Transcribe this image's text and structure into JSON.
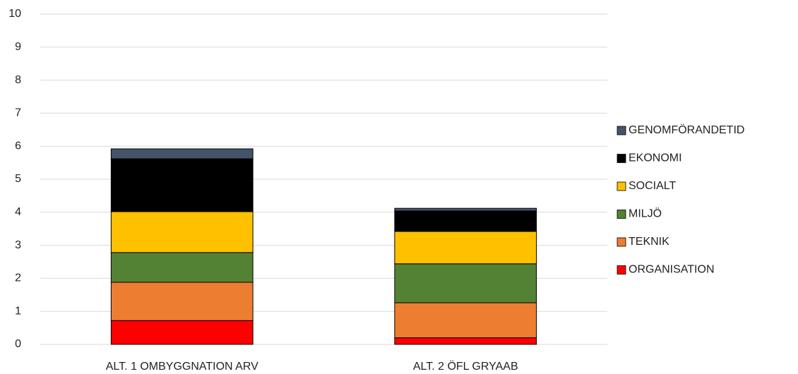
{
  "chart_data": {
    "type": "stacked_bar",
    "categories": [
      "ALT. 1 OMBYGGNATION ARV",
      "ALT. 2 ÖFL GRYAAB"
    ],
    "series": [
      {
        "name": "ORGANISATION",
        "color": "#ff0000",
        "values": [
          0.72,
          0.2
        ]
      },
      {
        "name": "TEKNIK",
        "color": "#ed7d31",
        "values": [
          1.16,
          1.06
        ]
      },
      {
        "name": "MILJÖ",
        "color": "#548235",
        "values": [
          0.9,
          1.18
        ]
      },
      {
        "name": "SOCIALT",
        "color": "#ffc000",
        "values": [
          1.24,
          0.98
        ]
      },
      {
        "name": "EKONOMI",
        "color": "#000000",
        "values": [
          1.6,
          0.62
        ]
      },
      {
        "name": "GENOMFÖRANDETID",
        "color": "#44546a",
        "values": [
          0.3,
          0.08
        ]
      }
    ],
    "ylim": [
      0,
      10
    ],
    "yticks": [
      0,
      1,
      2,
      3,
      4,
      5,
      6,
      7,
      8,
      9,
      10
    ],
    "grid": true,
    "legend": "right"
  }
}
